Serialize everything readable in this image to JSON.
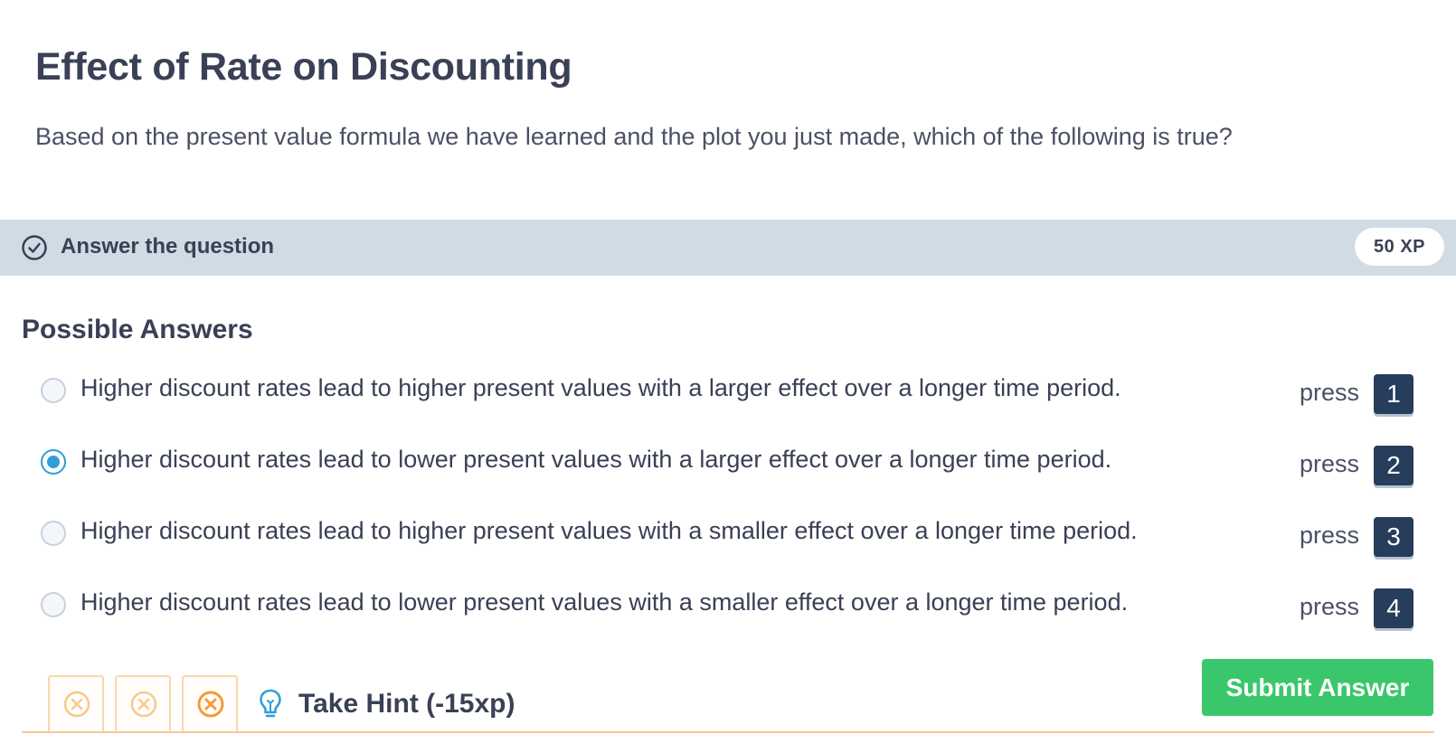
{
  "exercise": {
    "title": "Effect of Rate on Discounting",
    "question": "Based on the present value formula we have learned and the plot you just made, which of the following is true?"
  },
  "task": {
    "label": "Answer the question",
    "xp": "50 XP",
    "icon": "check-circle-icon"
  },
  "answers": {
    "heading": "Possible Answers",
    "press_label": "press",
    "selected_index": 1,
    "options": [
      {
        "text": "Higher discount rates lead to higher present values with a larger effect over a longer time period.",
        "key": "1"
      },
      {
        "text": "Higher discount rates lead to lower present values with a larger effect over a longer time period.",
        "key": "2"
      },
      {
        "text": "Higher discount rates lead to higher present values with a smaller effect over a longer time period.",
        "key": "3"
      },
      {
        "text": "Higher discount rates lead to lower present values with a smaller effect over a longer time period.",
        "key": "4"
      }
    ]
  },
  "footer": {
    "attempts": [
      "close-circle-icon",
      "close-circle-icon",
      "close-circle-icon"
    ],
    "hint_label": "Take Hint (-15xp)",
    "hint_icon": "lightbulb-icon",
    "submit_label": "Submit Answer"
  },
  "colors": {
    "accent_blue": "#2f9ed8",
    "key_navy": "#263d5c",
    "submit_green": "#3ac76b",
    "attempt_orange": "#f7a44a",
    "task_bar": "#d1dbe3"
  }
}
